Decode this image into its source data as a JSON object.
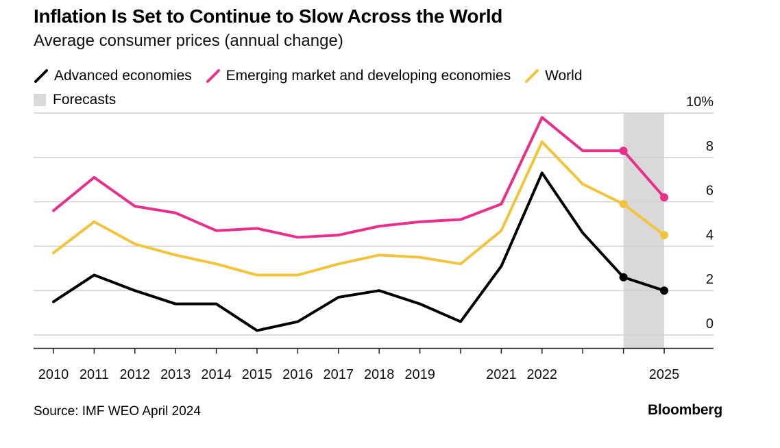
{
  "header": {
    "title": "Inflation Is Set to Continue to Slow Across the World",
    "subtitle": "Average consumer prices (annual change)"
  },
  "legend": {
    "advanced": "Advanced economies",
    "emerging": "Emerging market and developing economies",
    "world": "World",
    "forecasts": "Forecasts"
  },
  "footer": {
    "source": "Source: IMF WEO April 2024",
    "brand": "Bloomberg"
  },
  "colors": {
    "advanced": "#000000",
    "emerging": "#e8308a",
    "world": "#f2c43d",
    "forecast_band": "#d9d9d9",
    "grid": "#d0d0d0"
  },
  "chart_data": {
    "type": "line",
    "x": [
      2010,
      2011,
      2012,
      2013,
      2014,
      2015,
      2016,
      2017,
      2018,
      2019,
      2020,
      2021,
      2022,
      2023,
      2024,
      2025
    ],
    "x_tick_labels": [
      "2010",
      "2011",
      "2012",
      "2013",
      "2014",
      "2015",
      "2016",
      "2017",
      "2018",
      "2019",
      "2021",
      "2022",
      "2025"
    ],
    "x_tick_label_years": [
      2010,
      2011,
      2012,
      2013,
      2014,
      2015,
      2016,
      2017,
      2018,
      2019,
      2021,
      2022,
      2025
    ],
    "ylim": [
      -0.6,
      10
    ],
    "y_ticks": [
      0,
      2,
      4,
      6,
      8,
      10
    ],
    "y_tick_labels": [
      "0",
      "2",
      "4",
      "6",
      "8",
      "10%"
    ],
    "grid": true,
    "forecast_range": [
      2024,
      2025
    ],
    "series": [
      {
        "name": "Advanced economies",
        "key": "advanced",
        "values": [
          1.5,
          2.7,
          2.0,
          1.4,
          1.4,
          0.2,
          0.6,
          1.7,
          2.0,
          1.4,
          0.6,
          3.1,
          7.3,
          4.6,
          2.6,
          2.0
        ],
        "markers": [
          2024,
          2025
        ]
      },
      {
        "name": "Emerging market and developing economies",
        "key": "emerging",
        "values": [
          5.6,
          7.1,
          5.8,
          5.5,
          4.7,
          4.8,
          4.4,
          4.5,
          4.9,
          5.1,
          5.2,
          5.9,
          9.8,
          8.3,
          8.3,
          6.2
        ],
        "markers": [
          2024,
          2025
        ]
      },
      {
        "name": "World",
        "key": "world",
        "values": [
          3.7,
          5.1,
          4.1,
          3.6,
          3.2,
          2.7,
          2.7,
          3.2,
          3.6,
          3.5,
          3.2,
          4.7,
          8.7,
          6.8,
          5.9,
          4.5
        ],
        "markers": [
          2024,
          2025
        ]
      }
    ]
  }
}
